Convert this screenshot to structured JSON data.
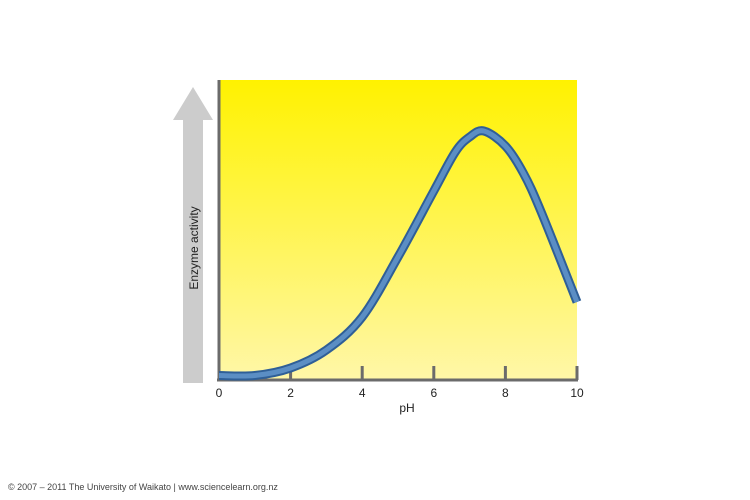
{
  "chart_data": {
    "type": "line",
    "title": "",
    "xlabel": "pH",
    "ylabel": "Enzyme activity",
    "xlim": [
      0,
      10
    ],
    "ylim": [
      0,
      10
    ],
    "x_ticks": [
      0,
      2,
      4,
      6,
      8,
      10
    ],
    "grid": false,
    "y_axis_arrow": true,
    "series": [
      {
        "values": [
          {
            "x": 0,
            "y": 0.15
          },
          {
            "x": 1,
            "y": 0.15
          },
          {
            "x": 2,
            "y": 0.4
          },
          {
            "x": 3,
            "y": 1.0
          },
          {
            "x": 4,
            "y": 2.1
          },
          {
            "x": 5,
            "y": 4.1
          },
          {
            "x": 6,
            "y": 6.3
          },
          {
            "x": 6.6,
            "y": 7.6
          },
          {
            "x": 7,
            "y": 8.1
          },
          {
            "x": 7.4,
            "y": 8.3
          },
          {
            "x": 8,
            "y": 7.8
          },
          {
            "x": 8.5,
            "y": 6.9
          },
          {
            "x": 9,
            "y": 5.6
          },
          {
            "x": 10,
            "y": 2.6
          }
        ]
      }
    ]
  },
  "colors": {
    "plot_top": "#fff200",
    "plot_bottom": "#fff7a8",
    "curve_fill": "#5b8ec4",
    "curve_outline": "#2f5f97",
    "axis": "#6b6b6b",
    "arrow": "#cccccc"
  },
  "footer": {
    "copyright": "© 2007 – 2011 The University of Waikato | www.sciencelearn.org.nz"
  }
}
